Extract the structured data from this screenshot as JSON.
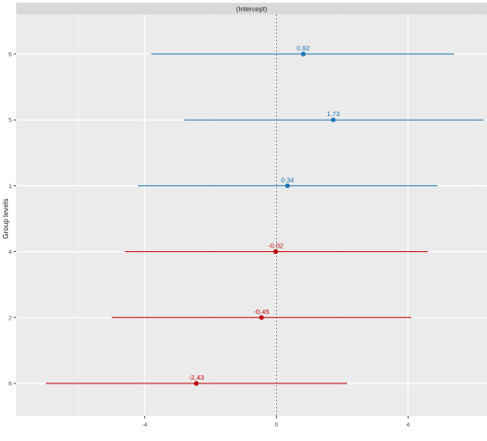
{
  "chart_data": {
    "type": "scatter",
    "facet_label": "(Intercept)",
    "ylabel": "Group levels",
    "xlabel": "",
    "xlim": [
      -7.9,
      6.4
    ],
    "x_ticks": [
      -4,
      0,
      4
    ],
    "x_tick_labels": [
      "-4",
      "0",
      "4"
    ],
    "reference_line_x": 0,
    "grid": true,
    "rows": [
      {
        "label": "6",
        "estimate": 0.82,
        "estimate_label": "0.82",
        "ci": [
          -3.8,
          5.4
        ],
        "color": "#1f77b4"
      },
      {
        "label": "5",
        "estimate": 1.73,
        "estimate_label": "1.73",
        "ci": [
          -2.8,
          6.3
        ],
        "color": "#1f77b4"
      },
      {
        "label": "1",
        "estimate": 0.34,
        "estimate_label": "0.34",
        "ci": [
          -4.2,
          4.9
        ],
        "color": "#1f77b4"
      },
      {
        "label": "4",
        "estimate": -0.02,
        "estimate_label": "-0.02",
        "ci": [
          -4.6,
          4.6
        ],
        "color": "#c00000"
      },
      {
        "label": "2",
        "estimate": -0.45,
        "estimate_label": "-0.45",
        "ci": [
          -5.0,
          4.1
        ],
        "color": "#c00000"
      },
      {
        "label": "6",
        "estimate": -2.43,
        "estimate_label": "-2.43",
        "ci": [
          -7.0,
          2.15
        ],
        "color": "#c00000"
      }
    ]
  }
}
